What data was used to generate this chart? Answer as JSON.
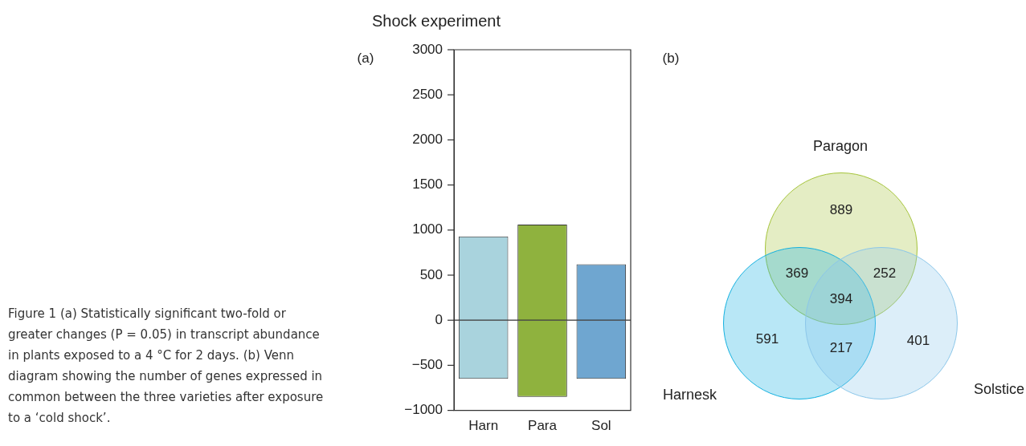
{
  "chart_data": [
    {
      "type": "bar",
      "title": "Shock experiment",
      "categories": [
        "Harn",
        "Para",
        "Sol"
      ],
      "series": [
        {
          "colors": [
            "#a9d3dd",
            "#8fb23e",
            "#6fa6d0"
          ],
          "values": [
            930,
            1060,
            620
          ]
        },
        {
          "colors": [
            "#a9d3dd",
            "#8fb23e",
            "#6fa6d0"
          ],
          "values": [
            -650,
            -850,
            -650
          ]
        }
      ],
      "stacked": true,
      "ref_lines": [
        {
          "axis": "y",
          "value": 0,
          "color": "#333333"
        }
      ],
      "ylim": [
        -1000,
        3000
      ],
      "yticks": [
        -1000,
        -500,
        0,
        500,
        1000,
        1500,
        2000,
        2500,
        3000
      ],
      "grid": false,
      "legend": false,
      "annotations": [
        "(a)",
        "Figure 1 (a) Statistically significant two-fold or greater changes (P = 0.05) in transcript abundance in plants exposed to a 4 °C for 2 days. (b) Venn diagram showing the number of genes expressed in common between the three varieties after exposure to a ‘cold shock’."
      ]
    },
    {
      "type": "other",
      "title": "(b)",
      "categories": [
        "Paragon",
        "Harnesk",
        "Solstice"
      ],
      "colors": [
        "#a5c43a",
        "#14b1e0",
        "#8cc7ea"
      ],
      "annotations": [
        "889",
        "369",
        "252",
        "394",
        "591",
        "217",
        "401"
      ]
    }
  ]
}
